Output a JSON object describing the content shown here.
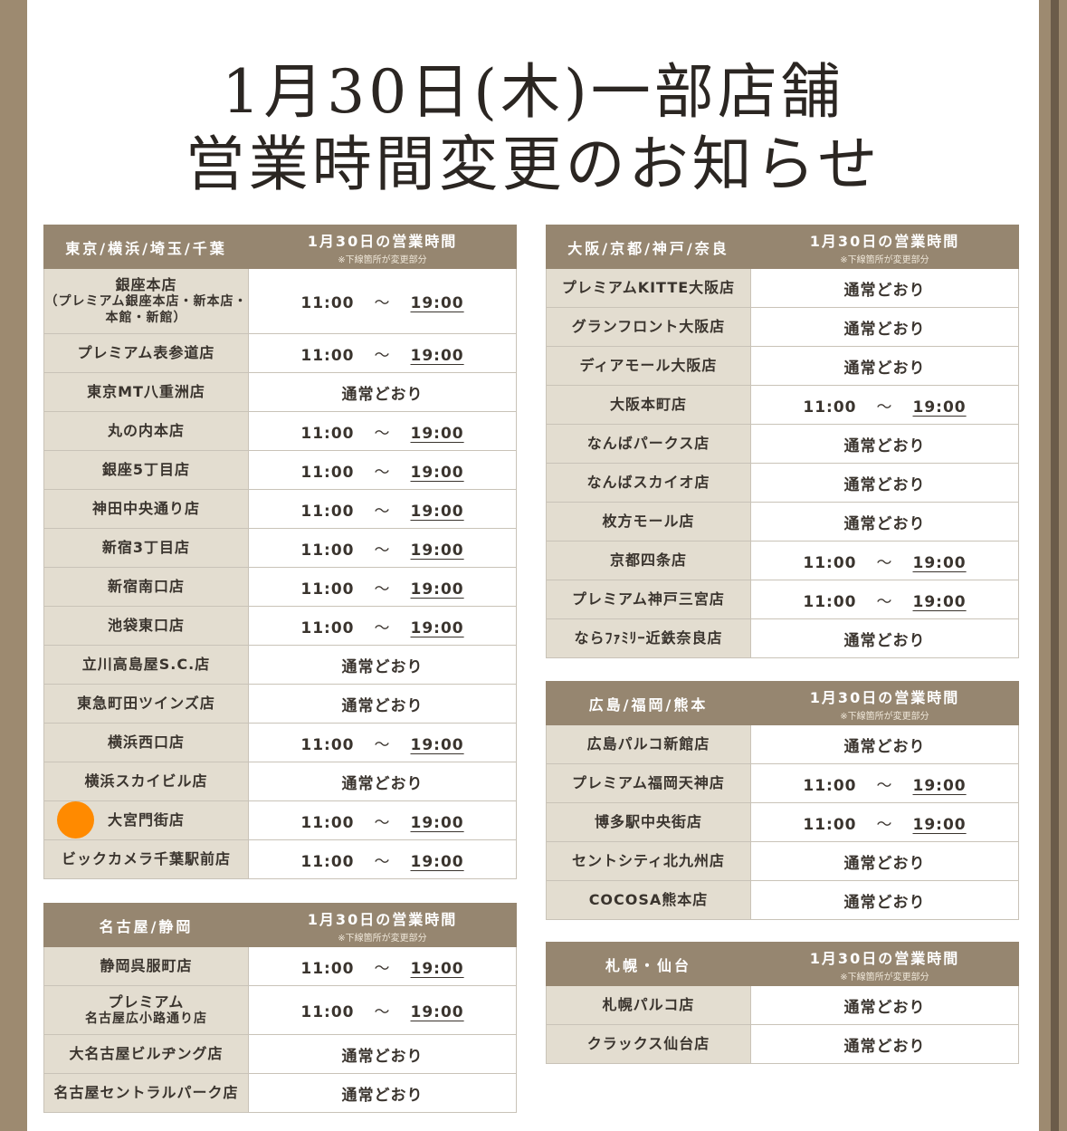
{
  "title": {
    "line1": "1月30日(木)一部店舗",
    "line2": "営業時間変更のお知らせ"
  },
  "hours_header": "1月30日の営業時間",
  "hours_note": "※下線箇所が変更部分",
  "colors": {
    "header": "#968670",
    "name_cell": "#e3ddd0",
    "frame": "#9d8a70",
    "marker": "#ff8a00"
  },
  "tables": [
    {
      "area": "東京/横浜/埼玉/千葉",
      "rows": [
        {
          "name": "銀座本店",
          "sub": "（プレミアム銀座本店・新本店・本館・新館）",
          "open": "11:00",
          "sep": "〜",
          "close": "19:00"
        },
        {
          "name": "プレミアム表参道店",
          "open": "11:00",
          "sep": "〜",
          "close": "19:00"
        },
        {
          "name": "東京MT八重洲店",
          "status": "通常どおり"
        },
        {
          "name": "丸の内本店",
          "open": "11:00",
          "sep": "〜",
          "close": "19:00"
        },
        {
          "name": "銀座5丁目店",
          "open": "11:00",
          "sep": "〜",
          "close": "19:00"
        },
        {
          "name": "神田中央通り店",
          "open": "11:00",
          "sep": "〜",
          "close": "19:00"
        },
        {
          "name": "新宿3丁目店",
          "open": "11:00",
          "sep": "〜",
          "close": "19:00"
        },
        {
          "name": "新宿南口店",
          "open": "11:00",
          "sep": "〜",
          "close": "19:00"
        },
        {
          "name": "池袋東口店",
          "open": "11:00",
          "sep": "〜",
          "close": "19:00"
        },
        {
          "name": "立川高島屋S.C.店",
          "status": "通常どおり"
        },
        {
          "name": "東急町田ツインズ店",
          "status": "通常どおり"
        },
        {
          "name": "横浜西口店",
          "open": "11:00",
          "sep": "〜",
          "close": "19:00"
        },
        {
          "name": "横浜スカイビル店",
          "status": "通常どおり"
        },
        {
          "name": "大宮門街店",
          "open": "11:00",
          "sep": "〜",
          "close": "19:00"
        },
        {
          "name": "ビックカメラ千葉駅前店",
          "open": "11:00",
          "sep": "〜",
          "close": "19:00"
        }
      ]
    },
    {
      "area": "名古屋/静岡",
      "rows": [
        {
          "name": "静岡呉服町店",
          "open": "11:00",
          "sep": "〜",
          "close": "19:00"
        },
        {
          "name": "プレミアム",
          "sub": "名古屋広小路通り店",
          "open": "11:00",
          "sep": "〜",
          "close": "19:00"
        },
        {
          "name": "大名古屋ビルヂング店",
          "status": "通常どおり"
        },
        {
          "name": "名古屋セントラルパーク店",
          "status": "通常どおり"
        }
      ]
    },
    {
      "area": "大阪/京都/神戸/奈良",
      "rows": [
        {
          "name": "プレミアムKITTE大阪店",
          "status": "通常どおり"
        },
        {
          "name": "グランフロント大阪店",
          "status": "通常どおり"
        },
        {
          "name": "ディアモール大阪店",
          "status": "通常どおり"
        },
        {
          "name": "大阪本町店",
          "open": "11:00",
          "sep": "〜",
          "close": "19:00"
        },
        {
          "name": "なんばパークス店",
          "status": "通常どおり"
        },
        {
          "name": "なんばスカイオ店",
          "status": "通常どおり"
        },
        {
          "name": "枚方モール店",
          "status": "通常どおり"
        },
        {
          "name": "京都四条店",
          "open": "11:00",
          "sep": "〜",
          "close": "19:00"
        },
        {
          "name": "プレミアム神戸三宮店",
          "open": "11:00",
          "sep": "〜",
          "close": "19:00"
        },
        {
          "name": "ならﾌｧﾐﾘｰ近鉄奈良店",
          "status": "通常どおり"
        }
      ]
    },
    {
      "area": "広島/福岡/熊本",
      "rows": [
        {
          "name": "広島パルコ新館店",
          "status": "通常どおり"
        },
        {
          "name": "プレミアム福岡天神店",
          "open": "11:00",
          "sep": "〜",
          "close": "19:00"
        },
        {
          "name": "博多駅中央街店",
          "open": "11:00",
          "sep": "〜",
          "close": "19:00"
        },
        {
          "name": "セントシティ北九州店",
          "status": "通常どおり"
        },
        {
          "name": "COCOSA熊本店",
          "status": "通常どおり"
        }
      ]
    },
    {
      "area": "札幌・仙台",
      "rows": [
        {
          "name": "札幌パルコ店",
          "status": "通常どおり"
        },
        {
          "name": "クラックス仙台店",
          "status": "通常どおり"
        }
      ]
    }
  ]
}
